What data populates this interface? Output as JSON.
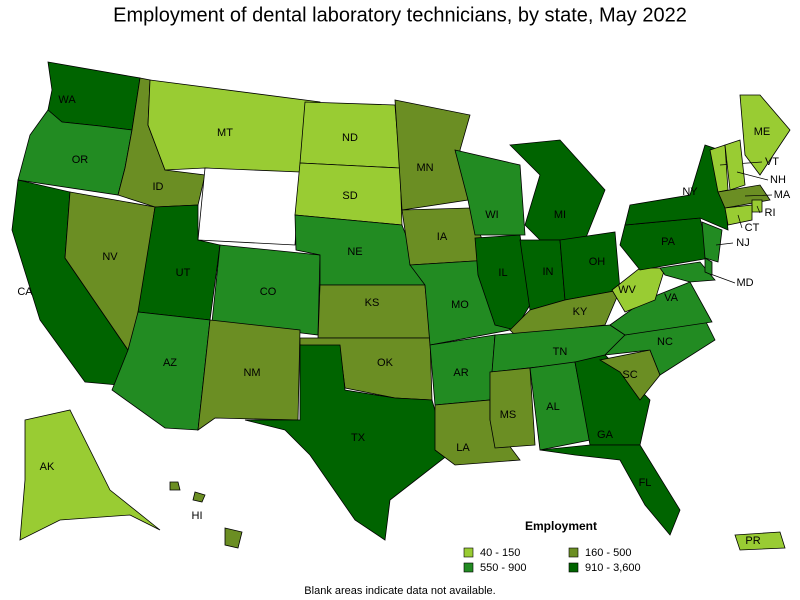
{
  "title": "Employment of dental laboratory technicians, by state, May 2022",
  "legend": {
    "title": "Employment",
    "classes": [
      {
        "label": "40 - 150",
        "color": "#99cc33"
      },
      {
        "label": "160 - 500",
        "color": "#6b8e23"
      },
      {
        "label": "550 - 900",
        "color": "#228b22"
      },
      {
        "label": "910 - 3,600",
        "color": "#006400"
      }
    ]
  },
  "states": [
    {
      "label": "WA",
      "color": "#006400"
    },
    {
      "label": "OR",
      "color": "#228b22"
    },
    {
      "label": "CA",
      "color": "#006400"
    },
    {
      "label": "NV",
      "color": "#6b8e23"
    },
    {
      "label": "ID",
      "color": "#6b8e23"
    },
    {
      "label": "MT",
      "color": "#99cc33"
    },
    {
      "label": null,
      "color": "#ffffff"
    },
    {
      "label": "UT",
      "color": "#006400"
    },
    {
      "label": "AZ",
      "color": "#228b22"
    },
    {
      "label": "CO",
      "color": "#228b22"
    },
    {
      "label": "NM",
      "color": "#6b8e23"
    },
    {
      "label": "ND",
      "color": "#99cc33"
    },
    {
      "label": "SD",
      "color": "#99cc33"
    },
    {
      "label": "NE",
      "color": "#228b22"
    },
    {
      "label": "KS",
      "color": "#6b8e23"
    },
    {
      "label": "OK",
      "color": "#6b8e23"
    },
    {
      "label": "TX",
      "color": "#006400"
    },
    {
      "label": "MN",
      "color": "#6b8e23"
    },
    {
      "label": "IA",
      "color": "#6b8e23"
    },
    {
      "label": "MO",
      "color": "#228b22"
    },
    {
      "label": "AR",
      "color": "#228b22"
    },
    {
      "label": "LA",
      "color": "#6b8e23"
    },
    {
      "label": "WI",
      "color": "#228b22"
    },
    {
      "label": "IL",
      "color": "#006400"
    },
    {
      "label": "MI",
      "color": "#006400"
    },
    {
      "label": "IN",
      "color": "#006400"
    },
    {
      "label": "OH",
      "color": "#006400"
    },
    {
      "label": "KY",
      "color": "#6b8e23"
    },
    {
      "label": "TN",
      "color": "#228b22"
    },
    {
      "label": "MS",
      "color": "#6b8e23"
    },
    {
      "label": "AL",
      "color": "#228b22"
    },
    {
      "label": "GA",
      "color": "#006400"
    },
    {
      "label": "FL",
      "color": "#006400"
    },
    {
      "label": "SC",
      "color": "#6b8e23"
    },
    {
      "label": "NC",
      "color": "#228b22"
    },
    {
      "label": "VA",
      "color": "#228b22"
    },
    {
      "label": "WV",
      "color": "#99cc33"
    },
    {
      "label": "PA",
      "color": "#006400"
    },
    {
      "label": "NY",
      "color": "#006400"
    },
    {
      "label": "ME",
      "color": "#99cc33"
    },
    {
      "label": "VT",
      "color": "#99cc33"
    },
    {
      "label": "NH",
      "color": "#99cc33"
    },
    {
      "label": "MA",
      "color": "#6b8e23"
    },
    {
      "label": "RI",
      "color": "#99cc33"
    },
    {
      "label": "CT",
      "color": "#99cc33"
    },
    {
      "label": "NJ",
      "color": "#228b22"
    },
    {
      "label": "MD",
      "color": "#228b22"
    },
    {
      "label": null,
      "color": "#228b22"
    },
    {
      "label": "AK",
      "color": "#99cc33"
    },
    {
      "label": "HI",
      "color": "#6b8e23"
    },
    {
      "label": "PR",
      "color": "#99cc33"
    }
  ],
  "note": "Blank areas indicate data not available."
}
